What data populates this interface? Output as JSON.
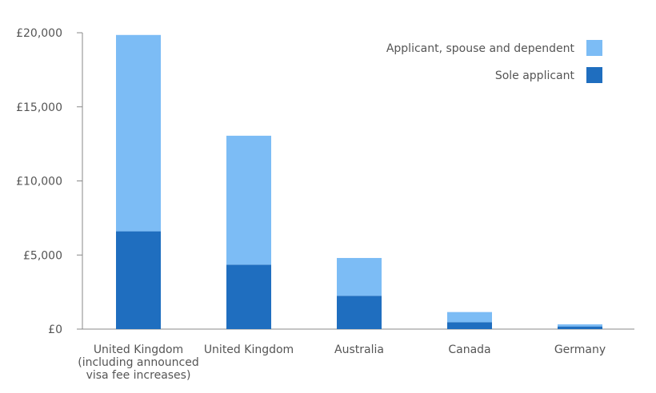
{
  "chart_data": {
    "type": "bar",
    "stacked": true,
    "categories": [
      [
        "United Kingdom",
        "(including announced",
        "visa fee increases)"
      ],
      [
        "United Kingdom"
      ],
      [
        "Australia"
      ],
      [
        "Canada"
      ],
      [
        "Germany"
      ]
    ],
    "series": [
      {
        "name": "Sole applicant",
        "color": "#1f6ebf",
        "values": [
          6600,
          4350,
          2250,
          470,
          180
        ]
      },
      {
        "name": "Applicant, spouse and dependent",
        "color": "#7cbcf5",
        "values": [
          13250,
          8700,
          2550,
          680,
          140
        ]
      }
    ],
    "yticks": [
      "£0",
      "£5,000",
      "£10,000",
      "£15,000",
      "£20,000"
    ],
    "ylim": [
      0,
      20000
    ],
    "grid": false,
    "legend": {
      "position": "top-right",
      "items": [
        {
          "label": "Applicant, spouse and dependent",
          "color": "#7cbcf5"
        },
        {
          "label": "Sole applicant",
          "color": "#1f6ebf"
        }
      ]
    }
  }
}
